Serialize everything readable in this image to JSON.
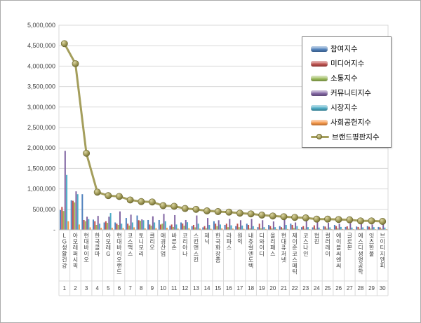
{
  "window": {
    "background": "#ffffff",
    "border_color": "#ababab"
  },
  "chart_data": {
    "type": "bar",
    "subtype": "grouped-bars-with-line-overlay",
    "title": "",
    "grid": true,
    "grid_color": "#d9d9d9",
    "axis_line_color": "#bfbfbf",
    "axis_label_color": "#404040",
    "legend_position": "top-right",
    "legend_border_color": "#808080",
    "ylim": [
      0,
      5000000
    ],
    "y_axis": {
      "min": 0,
      "max": 5000000,
      "step": 500000,
      "tick_labels": [
        "5,000,000",
        "4,500,000",
        "4,000,000",
        "3,500,000",
        "3,000,000",
        "2,500,000",
        "2,000,000",
        "1,500,000",
        "1,000,000",
        "500,000",
        "-"
      ]
    },
    "categories": [
      "LG생활건강",
      "아모레퍼시픽",
      "현대바이오",
      "한국콜마",
      "아모레G",
      "현대바이오랜드",
      "코스맥스",
      "토니모리",
      "클리오",
      "애경산업",
      "바른손",
      "코리아나",
      "스킨앤스킨",
      "제닉",
      "한국화장품",
      "라파스",
      "원익",
      "내츄럴엔도텍",
      "디와이디",
      "올리패스",
      "현대퓨처넷",
      "제이준코스메틱",
      "코스나인",
      "협진",
      "컬러레이",
      "에이블씨엔씨",
      "글로본",
      "에스디생명공학",
      "잇츠한불",
      "브이티지엠피"
    ],
    "ranks": [
      "1",
      "2",
      "3",
      "4",
      "5",
      "6",
      "7",
      "8",
      "9",
      "10",
      "11",
      "12",
      "13",
      "14",
      "15",
      "16",
      "17",
      "18",
      "19",
      "20",
      "21",
      "22",
      "23",
      "24",
      "25",
      "26",
      "27",
      "28",
      "29",
      "30"
    ],
    "series": [
      {
        "name": "참여지수",
        "type": "bar",
        "color": "#4f81bd",
        "values": [
          480000,
          720000,
          870000,
          250000,
          180000,
          180000,
          290000,
          350000,
          240000,
          240000,
          100000,
          180000,
          90000,
          60000,
          210000,
          120000,
          90000,
          150000,
          65000,
          120000,
          90000,
          150000,
          65000,
          60000,
          90000,
          120000,
          70000,
          80000,
          90000,
          70000
        ]
      },
      {
        "name": "미디어지수",
        "type": "bar",
        "color": "#c0504d",
        "values": [
          560000,
          710000,
          240000,
          210000,
          210000,
          150000,
          150000,
          235000,
          130000,
          130000,
          130000,
          155000,
          120000,
          90000,
          150000,
          150000,
          150000,
          120000,
          150000,
          90000,
          65000,
          120000,
          90000,
          110000,
          80000,
          90000,
          85000,
          70000,
          75000,
          60000
        ]
      },
      {
        "name": "소통지수",
        "type": "bar",
        "color": "#9bbb59",
        "values": [
          460000,
          670000,
          210000,
          120000,
          170000,
          120000,
          105000,
          220000,
          100000,
          150000,
          70000,
          100000,
          60000,
          40000,
          90000,
          65000,
          65000,
          35000,
          35000,
          35000,
          35000,
          45000,
          25000,
          25000,
          30000,
          35000,
          25000,
          25000,
          30000,
          25000
        ]
      },
      {
        "name": "커뮤니티지수",
        "type": "bar",
        "color": "#8064a2",
        "values": [
          1930000,
          940000,
          320000,
          340000,
          320000,
          450000,
          370000,
          255000,
          330000,
          390000,
          360000,
          240000,
          350000,
          290000,
          235000,
          265000,
          235000,
          265000,
          235000,
          205000,
          295000,
          180000,
          265000,
          180000,
          170000,
          150000,
          160000,
          140000,
          130000,
          170000
        ]
      },
      {
        "name": "시장지수",
        "type": "bar",
        "color": "#4bacc6",
        "values": [
          1340000,
          870000,
          260000,
          150000,
          410000,
          150000,
          180000,
          235000,
          180000,
          210000,
          130000,
          185000,
          150000,
          120000,
          130000,
          110000,
          105000,
          90000,
          65000,
          65000,
          120000,
          90000,
          65000,
          55000,
          60000,
          70000,
          55000,
          60000,
          65000,
          55000
        ]
      },
      {
        "name": "사회공헌지수",
        "type": "bar",
        "color": "#f79646",
        "values": [
          210000,
          130000,
          60000,
          50000,
          50000,
          45000,
          60000,
          35000,
          40000,
          50000,
          30000,
          40000,
          30000,
          25000,
          35000,
          30000,
          25000,
          20000,
          20000,
          20000,
          20000,
          20000,
          15000,
          15000,
          15000,
          20000,
          15000,
          15000,
          15000,
          15000
        ]
      },
      {
        "name": "브랜드평판지수",
        "type": "line",
        "color": "#a49e5c",
        "marker": "circle",
        "values": [
          4550000,
          4060000,
          1870000,
          920000,
          835000,
          815000,
          730000,
          690000,
          680000,
          590000,
          575000,
          520000,
          500000,
          462000,
          445000,
          433000,
          406000,
          389000,
          360000,
          337000,
          320000,
          303000,
          291000,
          262000,
          262000,
          252000,
          245000,
          217000,
          217000,
          205000
        ]
      }
    ]
  }
}
